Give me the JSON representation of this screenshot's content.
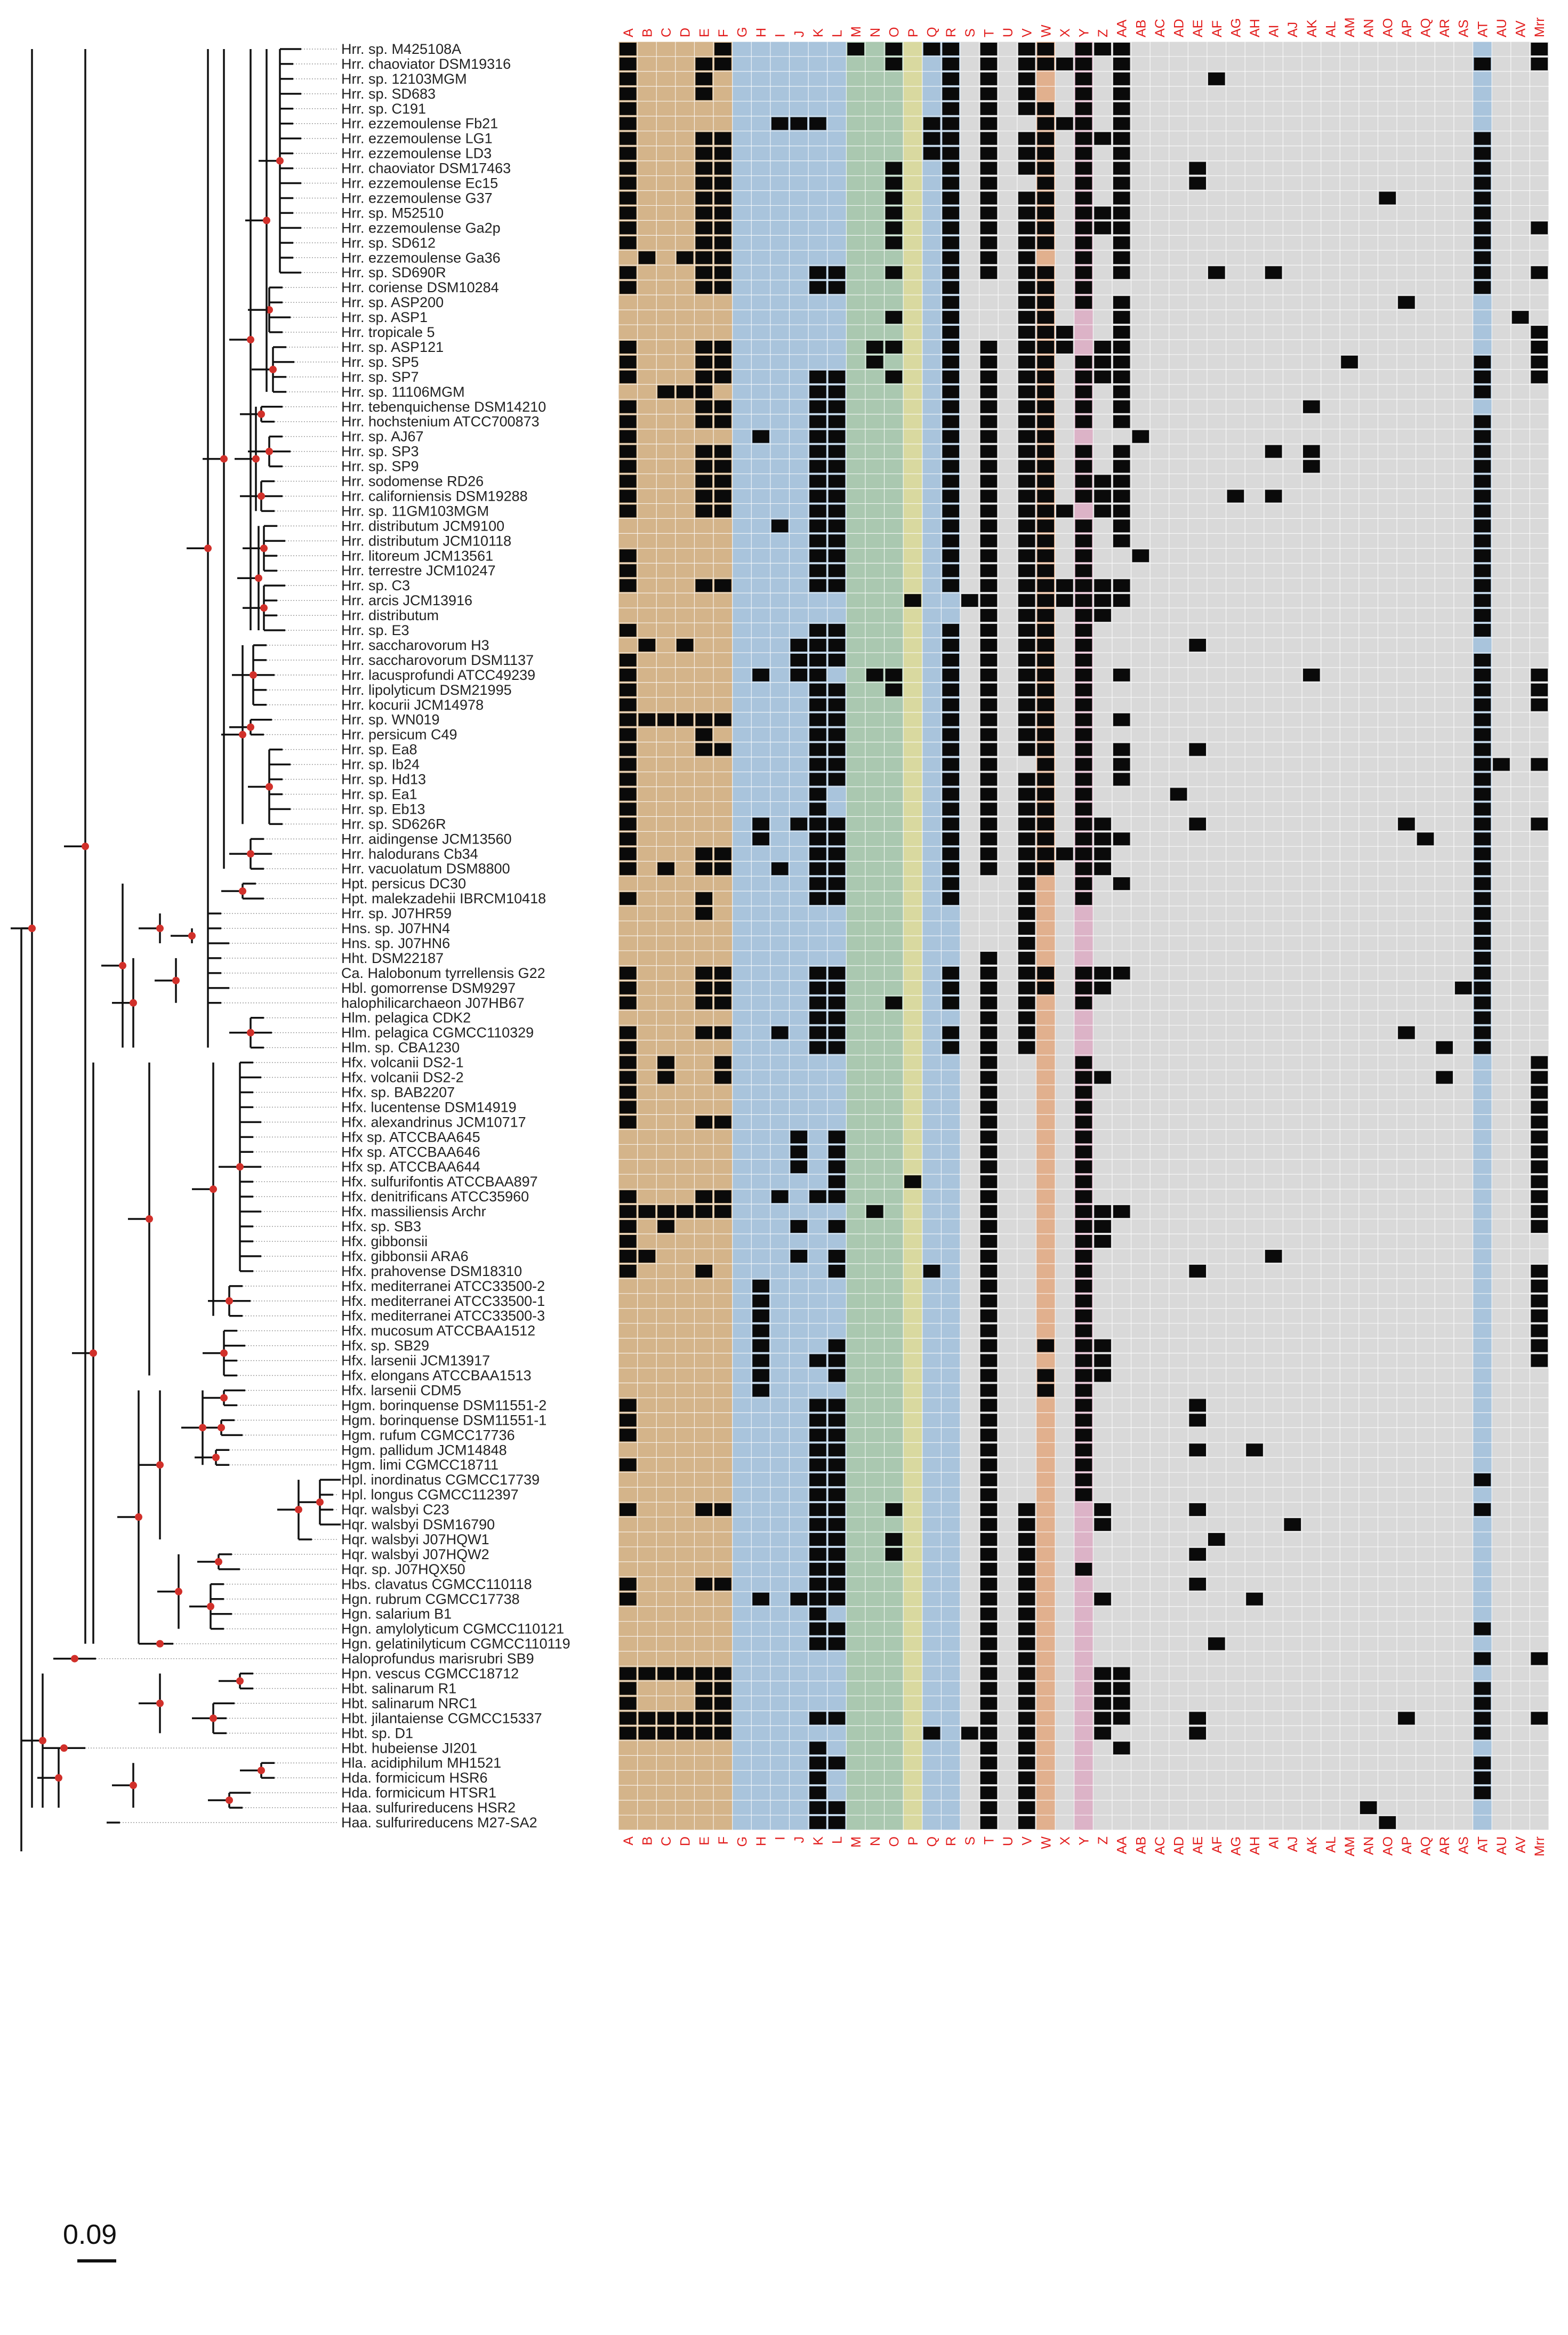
{
  "figure": {
    "scale_bar_label": "0.09"
  },
  "colors": {
    "grid_bg": "#d9d9d9",
    "cell_fill": "#0a0a0a",
    "label": "#e21d1d",
    "node": "#d1302a",
    "branch": "#111111",
    "bands": {
      "brown": "#d4b48a",
      "blue": "#a9c4dc",
      "green": "#aac8b0",
      "yellow": "#d9d9a0",
      "orange": "#e1b08e",
      "pink": "#dcb3c7"
    }
  },
  "columns": [
    "A",
    "B",
    "C",
    "D",
    "E",
    "F",
    "G",
    "H",
    "I",
    "J",
    "K",
    "L",
    "M",
    "N",
    "O",
    "P",
    "Q",
    "R",
    "S",
    "T",
    "U",
    "V",
    "W",
    "X",
    "Y",
    "Z",
    "AA",
    "AB",
    "AC",
    "AD",
    "AE",
    "AF",
    "AG",
    "AH",
    "AI",
    "AJ",
    "AK",
    "AL",
    "AM",
    "AN",
    "AO",
    "AP",
    "AQ",
    "AR",
    "AS",
    "AT",
    "AU",
    "AV",
    "Mrr"
  ],
  "bands": [
    {
      "from": "A",
      "to": "F",
      "color": "brown"
    },
    {
      "from": "G",
      "to": "L",
      "color": "blue"
    },
    {
      "from": "M",
      "to": "O",
      "color": "green"
    },
    {
      "from": "P",
      "to": "P",
      "color": "yellow"
    },
    {
      "from": "Q",
      "to": "R",
      "color": "blue"
    },
    {
      "from": "W",
      "to": "W",
      "color": "orange"
    },
    {
      "from": "Y",
      "to": "Y",
      "color": "pink"
    },
    {
      "from": "AT",
      "to": "AT",
      "color": "blue"
    }
  ],
  "taxa": [
    "Hrr. sp. M425108A",
    "Hrr. chaoviator DSM19316",
    "Hrr. sp. 12103MGM",
    "Hrr. sp. SD683",
    "Hrr. sp. C191",
    "Hrr. ezzemoulense Fb21",
    "Hrr. ezzemoulense LG1",
    "Hrr. ezzemoulense LD3",
    "Hrr. chaoviator DSM17463",
    "Hrr. ezzemoulense Ec15",
    "Hrr. ezzemoulense G37",
    "Hrr. sp. M52510",
    "Hrr. ezzemoulense Ga2p",
    "Hrr. sp. SD612",
    "Hrr. ezzemoulense Ga36",
    "Hrr. sp. SD690R",
    "Hrr. coriense DSM10284",
    "Hrr. sp. ASP200",
    "Hrr. sp. ASP1",
    "Hrr. tropicale 5",
    "Hrr. sp. ASP121",
    "Hrr. sp. SP5",
    "Hrr. sp. SP7",
    "Hrr. sp. 11106MGM",
    "Hrr. tebenquichense DSM14210",
    "Hrr. hochstenium ATCC700873",
    "Hrr. sp. AJ67",
    "Hrr. sp. SP3",
    "Hrr. sp. SP9",
    "Hrr. sodomense RD26",
    "Hrr. californiensis DSM19288",
    "Hrr. sp. 11GM103MGM",
    "Hrr. distributum JCM9100",
    "Hrr. distributum JCM10118",
    "Hrr. litoreum JCM13561",
    "Hrr. terrestre JCM10247",
    "Hrr. sp. C3",
    "Hrr. arcis JCM13916",
    "Hrr. distributum",
    "Hrr. sp. E3",
    "Hrr. saccharovorum H3",
    "Hrr. saccharovorum DSM1137",
    "Hrr. lacusprofundi ATCC49239",
    "Hrr. lipolyticum DSM21995",
    "Hrr. kocurii JCM14978",
    "Hrr. sp. WN019",
    "Hrr. persicum C49",
    "Hrr. sp. Ea8",
    "Hrr. sp. Ib24",
    "Hrr. sp. Hd13",
    "Hrr. sp. Ea1",
    "Hrr. sp. Eb13",
    "Hrr. sp. SD626R",
    "Hrr. aidingense JCM13560",
    "Hrr. halodurans Cb34",
    "Hrr. vacuolatum DSM8800",
    "Hpt. persicus DC30",
    "Hpt. malekzadehii IBRCM10418",
    "Hrr. sp. J07HR59",
    "Hns. sp. J07HN4",
    "Hns. sp. J07HN6",
    "Hht. DSM22187",
    "Ca. Halobonum tyrrellensis G22",
    "Hbl. gomorrense DSM9297",
    "halophilicarchaeon J07HB67",
    "Hlm. pelagica CDK2",
    "Hlm. pelagica CGMCC110329",
    "Hlm. sp. CBA1230",
    "Hfx. volcanii DS2-1",
    "Hfx. volcanii DS2-2",
    "Hfx. sp. BAB2207",
    "Hfx. lucentense DSM14919",
    "Hfx. alexandrinus JCM10717",
    "Hfx sp. ATCCBAA645",
    "Hfx sp. ATCCBAA646",
    "Hfx sp. ATCCBAA644",
    "Hfx. sulfurifontis ATCCBAA897",
    "Hfx. denitrificans ATCC35960",
    "Hfx. massiliensis Archr",
    "Hfx. sp. SB3",
    "Hfx. gibbonsii",
    "Hfx. gibbonsii ARA6",
    "Hfx. prahovense DSM18310",
    "Hfx. mediterranei ATCC33500-2",
    "Hfx. mediterranei ATCC33500-1",
    "Hfx. mediterranei ATCC33500-3",
    "Hfx. mucosum ATCCBAA1512",
    "Hfx. sp. SB29",
    "Hfx. larsenii JCM13917",
    "Hfx. elongans ATCCBAA1513",
    "Hfx. larsenii CDM5",
    "Hgm. borinquense DSM11551-2",
    "Hgm. borinquense DSM11551-1",
    "Hgm. rufum CGMCC17736",
    "Hgm. pallidum JCM14848",
    "Hgm. limi CGMCC18711",
    "Hpl. inordinatus CGMCC17739",
    "Hpl. longus CGMCC112397",
    "Hqr. walsbyi C23",
    "Hqr. walsbyi DSM16790",
    "Hqr. walsbyi J07HQW1",
    "Hqr. walsbyi J07HQW2",
    "Hqr. sp. J07HQX50",
    "Hbs. clavatus CGMCC110118",
    "Hgn. rubrum CGMCC17738",
    "Hgn. salarium B1",
    "Hgn. amylolyticum CGMCC110121",
    "Hgn. gelatinilyticum CGMCC110119",
    "Haloprofundus marisrubri SB9",
    "Hpn. vescus CGMCC18712",
    "Hbt. salinarum R1",
    "Hbt. salinarum NRC1",
    "Hbt. jilantaiense CGMCC15337",
    "Hbt. sp. D1",
    "Hbt. hubeiense JI201",
    "Hla. acidiphilum MH1521",
    "Hda. formicicum HSR6",
    "Hda. formicicum HTSR1",
    "Haa. sulfurireducens HSR2",
    "Haa. sulfurireducens M27-SA2"
  ],
  "presence": [
    "A,F,M,O,Q,R,T,V,W,Y,Z,AA,Mrr",
    "A,E,F,O,R,T,V,W,X,Y,AA,AT,Mrr",
    "A,E,R,T,V,Y,AA,AF",
    "A,E,R,T,V,Y,AA",
    "A,R,T,V,W,Y,AA",
    "A,I,J,K,Q,R,T,W,X,Y,AA",
    "A,E,F,Q,R,T,V,W,Y,Z,AA,AT",
    "A,E,F,Q,R,T,V,W,Y,AA,AT",
    "A,E,F,O,R,T,V,W,Y,AA,AE,AT",
    "A,E,F,O,R,T,W,Y,AA,AE,AT",
    "A,E,F,O,R,T,V,W,Y,AA,AO,AT",
    "A,E,F,O,R,T,V,W,Y,Z,AA,AT",
    "A,E,F,O,R,T,V,W,Y,Z,AA,AT,Mrr",
    "A,E,F,O,R,T,V,W,Y,AA,AT",
    "B,D,E,F,R,T,V,Y,AA,AT",
    "A,E,F,K,L,O,R,T,V,W,Y,AA,AF,AI,AT,Mrr",
    "A,E,F,K,L,R,V,W,Y,AT",
    "R,V,W,Y,AA,AP",
    "O,R,V,W,AA,AV",
    "R,V,W,X,AA,Mrr",
    "A,E,F,N,O,R,T,V,W,X,Z,AA,Mrr",
    "A,E,F,N,R,T,V,W,Y,Z,AA,AT,AM,Mrr",
    "A,E,F,K,L,O,R,T,V,W,Y,Z,AA,AT,Mrr",
    "C,D,E,K,L,R,T,V,W,Y,AA,AT",
    "A,E,F,K,L,R,T,V,W,Y,AA,AK",
    "A,E,F,K,L,R,T,V,W,Y,AA,AT",
    "A,H,K,L,R,T,V,W,AB,AT",
    "A,E,F,K,L,R,T,V,W,Y,AA,AI,AK,AT",
    "A,E,F,K,L,R,T,V,W,Y,AA,AK,AT",
    "A,E,F,K,L,R,T,V,W,Y,Z,AA,AT",
    "A,E,F,K,L,R,T,V,W,Y,Z,AA,AG,AI,AT",
    "A,E,F,K,L,R,T,V,W,X,Z,AA,AT",
    "I,K,L,R,T,V,W,Y,AA,AT",
    "K,L,R,T,V,W,Y,AA,AT",
    "A,K,L,R,T,V,W,Y,AB,AT",
    "A,K,L,R,T,V,W,Y,AT",
    "A,E,F,K,L,R,T,V,W,X,Y,Z,AA,AT",
    "P,S,T,V,W,X,Y,Z,AA,AT",
    "T,V,W,Y,Z,AT",
    "A,K,L,R,T,V,W,Y,AT",
    "B,D,J,K,L,R,T,V,W,Y,AE",
    "A,J,K,L,R,T,V,W,Y,AT",
    "A,H,J,K,N,O,R,T,V,W,Y,AA,AK,AT,Mrr",
    "A,K,L,O,R,T,V,W,Y,AT,Mrr",
    "A,K,L,R,T,V,W,Y,AT,Mrr",
    "A,B,C,D,E,F,K,L,R,T,V,W,Y,AA,AT",
    "A,E,K,L,R,T,V,W,Y,AT",
    "A,E,F,K,L,R,T,V,W,Y,AA,AE,AT",
    "A,K,L,R,T,W,Y,AA,AT,AU,Mrr",
    "A,K,L,R,T,V,W,Y,AA,AT",
    "A,K,R,T,V,W,Y,AD,AT",
    "A,K,R,T,V,W,Y,AT",
    "A,H,J,K,L,R,T,V,W,Y,Z,AE,AP,AT,Mrr",
    "A,H,K,L,R,T,V,W,Y,Z,AA,AQ,AT",
    "A,E,F,K,L,R,T,V,W,X,Y,Z,AT",
    "A,C,E,F,I,K,L,R,T,V,W,Y,Z,AT",
    "K,L,R,V,Y,AA,AT",
    "A,E,K,L,R,V,Y,AT",
    "E,V,AT",
    "V,AT",
    "V,AT",
    "T,V,AT",
    "A,E,F,K,L,R,T,V,W,Y,Z,AA,AT",
    "A,E,F,K,L,R,T,V,W,Y,Z,AS,AT",
    "A,E,F,K,L,O,R,T,V,Y,AT",
    "K,L,T,V,AT",
    "A,E,F,I,K,L,R,T,V,AP,AT",
    "A,K,L,R,T,V,AR,AT",
    "A,C,F,T,Y,Mrr",
    "A,C,F,T,Y,Z,AR,Mrr",
    "A,T,Y,Mrr",
    "A,T,Y,Mrr",
    "A,E,F,T,Y,Mrr",
    "J,L,T,Y,Mrr",
    "J,L,T,Y,Mrr",
    "J,L,T,Y,Mrr",
    "L,P,T,Y,Mrr",
    "A,E,F,I,K,L,T,Y,Mrr",
    "A,B,C,D,E,F,N,T,Y,Z,AA,Mrr",
    "A,C,J,L,T,Y,Z,Mrr",
    "A,T,Y,Z",
    "A,B,J,L,T,Y,AI",
    "A,E,L,Q,T,Y,AE,Mrr",
    "H,T,Y,Mrr",
    "H,T,Y,Mrr",
    "H,T,Y,Mrr",
    "H,T,Y,Mrr",
    "H,L,T,W,Y,Z,Mrr",
    "H,K,L,T,Y,Z,Mrr",
    "H,L,T,W,Y,Z",
    "H,T,W,Y",
    "A,K,L,T,Y,AE",
    "A,K,L,T,Y,AE",
    "A,K,L,T,Y",
    "K,L,T,Y,AE,AH",
    "A,K,L,T,Y",
    "K,L,T,Y,AT",
    "K,L,T,Y",
    "A,E,F,K,L,O,T,V,Z,AE,AT",
    "K,L,T,V,Z,AJ",
    "K,L,O,T,V,AF",
    "K,L,O,T,V,AE",
    "K,L,T,V,Y",
    "A,E,F,K,L,T,V,AE",
    "A,H,J,K,L,T,V,Z,AH",
    "K,T,V",
    "K,L,T,V,AT",
    "K,L,T,V,AF",
    "T,V,AT,Mrr",
    "A,B,C,D,E,F,T,V,Z,AA",
    "A,E,F,T,V,Z,AA,AT",
    "A,E,F,T,V,Z,AA,AT",
    "A,B,C,D,E,F,K,L,T,V,Z,AA,AE,AP,AT,Mrr",
    "A,B,C,D,E,F,Q,S,T,V,Z,AE,AT",
    "K,T,V,AA",
    "K,L,T,V,AT",
    "K,T,V,AT",
    "K,T,V,AT",
    "K,L,T,V,AN",
    "K,L,T,V,AO"
  ]
}
